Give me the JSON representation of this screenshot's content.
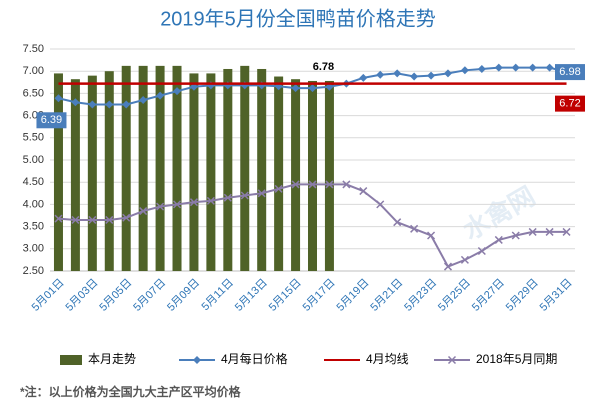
{
  "chart_data": {
    "type": "bar-line",
    "title": "2019年5月份全国鸭苗价格走势",
    "watermark": "水禽网",
    "footnote": "*注：以上价格为全国九大主产区平均价格",
    "categories": [
      "5月01日",
      null,
      "5月03日",
      null,
      "5月05日",
      null,
      "5月07日",
      null,
      "5月09日",
      null,
      "5月11日",
      null,
      "5月13日",
      null,
      "5月15日",
      null,
      "5月17日",
      null,
      "5月19日",
      null,
      "5月21日",
      null,
      "5月23日",
      null,
      "5月25日",
      null,
      "5月27日",
      null,
      "5月29日",
      null,
      "5月31日"
    ],
    "ylim": [
      2.5,
      7.5
    ],
    "yticks": [
      {
        "value": 2.5,
        "label": "2.50"
      },
      {
        "value": 3,
        "label": "3.00"
      },
      {
        "value": 3.5,
        "label": "3.50"
      },
      {
        "value": 4,
        "label": "4.00"
      },
      {
        "value": 4.5,
        "label": "4.50"
      },
      {
        "value": 5,
        "label": "5.00"
      },
      {
        "value": 5.5,
        "label": "5.50"
      },
      {
        "value": 6,
        "label": "6.00"
      },
      {
        "value": 6.5,
        "label": "6.50"
      },
      {
        "value": 7,
        "label": "7.00"
      },
      {
        "value": 7.5,
        "label": "7.50"
      }
    ],
    "grid": true,
    "series": [
      {
        "name": "本月走势",
        "kind": "bar",
        "color": "#4f6228",
        "values": [
          6.95,
          6.82,
          6.9,
          7.0,
          7.12,
          7.12,
          7.12,
          7.12,
          6.95,
          6.95,
          7.05,
          7.12,
          7.05,
          6.88,
          6.82,
          6.78,
          6.78,
          null,
          null,
          null,
          null,
          null,
          null,
          null,
          null,
          null,
          null,
          null,
          null,
          null,
          null
        ],
        "labeled_points": [
          16
        ]
      },
      {
        "name": "4月每日价格",
        "kind": "line",
        "marker": "diamond",
        "color": "#4a7ebb",
        "values": [
          6.39,
          6.3,
          6.25,
          6.25,
          6.25,
          6.35,
          6.45,
          6.55,
          6.65,
          6.68,
          6.68,
          6.68,
          6.68,
          6.66,
          6.62,
          6.62,
          6.65,
          6.72,
          6.85,
          6.92,
          6.95,
          6.88,
          6.9,
          6.95,
          7.02,
          7.05,
          7.08,
          7.08,
          7.08,
          7.08,
          6.98
        ],
        "labeled_points": [
          0,
          30
        ]
      },
      {
        "name": "4月均线",
        "kind": "line",
        "marker": "none",
        "color": "#c00000",
        "values": [
          6.72,
          6.72,
          6.72,
          6.72,
          6.72,
          6.72,
          6.72,
          6.72,
          6.72,
          6.72,
          6.72,
          6.72,
          6.72,
          6.72,
          6.72,
          6.72,
          6.72,
          6.72,
          6.72,
          6.72,
          6.72,
          6.72,
          6.72,
          6.72,
          6.72,
          6.72,
          6.72,
          6.72,
          6.72,
          6.72,
          6.72
        ],
        "labeled_points": [
          30
        ]
      },
      {
        "name": "2018年5月同期",
        "kind": "line",
        "marker": "x",
        "color": "#8a7ca8",
        "values": [
          3.68,
          3.65,
          3.65,
          3.65,
          3.7,
          3.85,
          3.95,
          4.0,
          4.05,
          4.08,
          4.15,
          4.2,
          4.25,
          4.35,
          4.45,
          4.45,
          4.45,
          4.45,
          4.3,
          4.0,
          3.6,
          3.45,
          3.3,
          2.6,
          2.75,
          2.95,
          3.2,
          3.3,
          3.38,
          3.38,
          3.38
        ],
        "labeled_points": []
      }
    ]
  }
}
